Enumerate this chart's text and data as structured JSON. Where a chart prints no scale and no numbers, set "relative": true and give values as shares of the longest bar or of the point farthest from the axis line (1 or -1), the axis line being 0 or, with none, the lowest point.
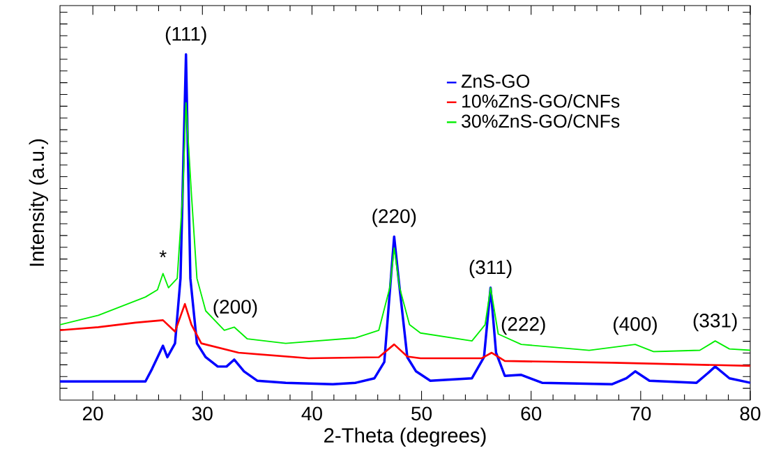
{
  "chart_data": {
    "type": "line",
    "xlabel": "2-Theta (degrees)",
    "ylabel": "Intensity (a.u.)",
    "relative": true,
    "xlim": [
      17,
      80
    ],
    "xticks": [
      20,
      30,
      40,
      50,
      60,
      70,
      80
    ],
    "legend": "top right",
    "marker": "none",
    "line_style": "solid",
    "grid": false,
    "series": [
      {
        "name": "ZnS-GO",
        "color": "#0000ff",
        "x": [
          17,
          24.8,
          25.4,
          26.4,
          26.8,
          27.5,
          28.0,
          28.5,
          28.9,
          29.5,
          30.3,
          31.4,
          32.2,
          32.9,
          33.8,
          35.0,
          37.6,
          41.9,
          44.0,
          45.7,
          46.6,
          47.2,
          47.5,
          47.9,
          48.7,
          49.5,
          50.8,
          54.6,
          55.7,
          56.3,
          56.8,
          57.6,
          59.1,
          61.0,
          67.4,
          68.7,
          69.5,
          70.8,
          75.1,
          76.1,
          76.8,
          78.1,
          80
        ],
        "values": [
          0.054,
          0.054,
          0.09,
          0.157,
          0.124,
          0.164,
          0.352,
          1.0,
          0.352,
          0.164,
          0.124,
          0.097,
          0.097,
          0.117,
          0.083,
          0.056,
          0.05,
          0.046,
          0.05,
          0.063,
          0.11,
          0.352,
          0.473,
          0.352,
          0.124,
          0.083,
          0.056,
          0.063,
          0.124,
          0.325,
          0.137,
          0.07,
          0.073,
          0.05,
          0.046,
          0.063,
          0.083,
          0.056,
          0.05,
          0.077,
          0.097,
          0.063,
          0.05
        ]
      },
      {
        "name": "10%ZnS-GO/CNFs",
        "color": "#ff0000",
        "x": [
          17,
          20.5,
          23.9,
          26.4,
          27.5,
          28.4,
          29.0,
          29.9,
          33.3,
          39.7,
          46.1,
          47.5,
          48.7,
          49.9,
          55.5,
          56.4,
          57.6,
          67.4,
          80
        ],
        "values": [
          0.202,
          0.211,
          0.224,
          0.231,
          0.198,
          0.278,
          0.218,
          0.164,
          0.137,
          0.121,
          0.124,
          0.161,
          0.126,
          0.121,
          0.121,
          0.137,
          0.113,
          0.108,
          0.099
        ]
      },
      {
        "name": "30%ZnS-GO/CNFs",
        "color": "#00ee00",
        "x": [
          17,
          20.5,
          24.8,
          25.9,
          26.4,
          26.9,
          27.7,
          28.2,
          28.5,
          29.0,
          29.5,
          30.3,
          32.0,
          32.9,
          34.1,
          37.6,
          44.0,
          46.1,
          47.1,
          47.5,
          48.0,
          48.9,
          49.9,
          54.6,
          55.8,
          56.3,
          57.0,
          59.1,
          65.3,
          69.5,
          71.2,
          75.4,
          76.8,
          78.1,
          80
        ],
        "values": [
          0.218,
          0.245,
          0.298,
          0.319,
          0.366,
          0.325,
          0.352,
          0.594,
          0.86,
          0.594,
          0.352,
          0.258,
          0.202,
          0.211,
          0.177,
          0.164,
          0.18,
          0.202,
          0.325,
          0.44,
          0.325,
          0.218,
          0.194,
          0.171,
          0.218,
          0.325,
          0.191,
          0.161,
          0.144,
          0.161,
          0.14,
          0.144,
          0.171,
          0.148,
          0.144
        ]
      }
    ],
    "annotations": [
      {
        "text": "(111)",
        "x": 28.5,
        "y": 1.0
      },
      {
        "text": "*",
        "x": 26.4,
        "y": 0.366
      },
      {
        "text": "(200)",
        "x": 33,
        "y": 0.211
      },
      {
        "text": "(220)",
        "x": 47.5,
        "y": 0.473
      },
      {
        "text": "(311)",
        "x": 56.3,
        "y": 0.325
      },
      {
        "text": "(222)",
        "x": 59.3,
        "y": 0.161
      },
      {
        "text": "(400)",
        "x": 69.5,
        "y": 0.161
      },
      {
        "text": "(331)",
        "x": 76.8,
        "y": 0.171
      }
    ]
  }
}
